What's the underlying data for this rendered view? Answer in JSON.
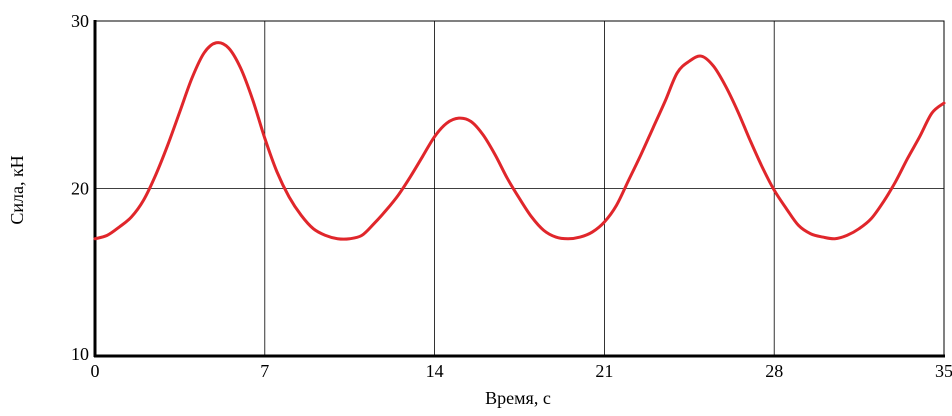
{
  "chart_data": {
    "type": "line",
    "title": "",
    "xlabel": "Время, с",
    "ylabel": "Сила, кН",
    "xlim": [
      0,
      35
    ],
    "ylim": [
      10,
      30
    ],
    "xticks": [
      0,
      7,
      14,
      21,
      28,
      35
    ],
    "yticks": [
      10,
      20,
      30
    ],
    "xtick_labels": [
      "0",
      "7",
      "14",
      "21",
      "28",
      "35"
    ],
    "ytick_labels": [
      "10",
      "20",
      "30"
    ],
    "grid": true,
    "legend": "none",
    "series": [
      {
        "color": "#e0262b",
        "x": [
          0,
          0.5,
          1,
          1.5,
          2,
          2.5,
          3,
          3.5,
          4,
          4.5,
          5,
          5.5,
          6,
          6.5,
          7,
          7.5,
          8,
          8.5,
          9,
          9.5,
          10,
          10.5,
          11,
          11.5,
          12,
          12.5,
          13,
          13.5,
          14,
          14.5,
          15,
          15.5,
          16,
          16.5,
          17,
          17.5,
          18,
          18.5,
          19,
          19.5,
          20,
          20.5,
          21,
          21.5,
          22,
          22.5,
          23,
          23.5,
          24,
          24.5,
          25,
          25.5,
          26,
          26.5,
          27,
          27.5,
          28,
          28.5,
          29,
          29.5,
          30,
          30.5,
          31,
          31.5,
          32,
          32.5,
          33,
          33.5,
          34,
          34.5,
          35
        ],
        "y": [
          17.0,
          17.2,
          17.7,
          18.3,
          19.3,
          20.8,
          22.6,
          24.6,
          26.6,
          28.1,
          28.7,
          28.4,
          27.2,
          25.3,
          23.0,
          21.0,
          19.5,
          18.4,
          17.6,
          17.2,
          17.0,
          17.0,
          17.2,
          17.9,
          18.7,
          19.6,
          20.7,
          21.9,
          23.1,
          23.9,
          24.2,
          24.0,
          23.2,
          22.0,
          20.6,
          19.4,
          18.3,
          17.5,
          17.1,
          17.0,
          17.1,
          17.4,
          18.0,
          19.0,
          20.5,
          22.0,
          23.6,
          25.2,
          26.9,
          27.6,
          27.9,
          27.3,
          26.1,
          24.6,
          22.9,
          21.3,
          19.9,
          18.8,
          17.8,
          17.3,
          17.1,
          17.0,
          17.2,
          17.6,
          18.2,
          19.2,
          20.4,
          21.8,
          23.1,
          24.5,
          25.1
        ]
      }
    ]
  }
}
